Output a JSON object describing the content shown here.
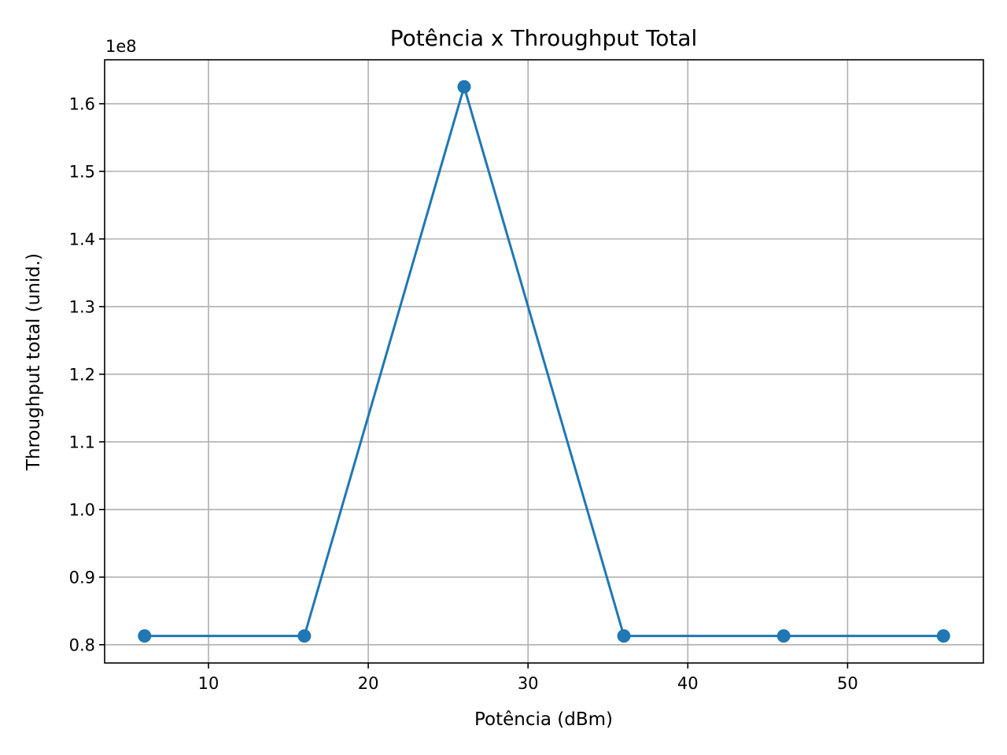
{
  "chart_data": {
    "type": "line",
    "title": "Potência x Throughput Total",
    "xlabel": "Potência (dBm)",
    "ylabel": "Throughput total (unid.)",
    "y_offset_label": "1e8",
    "x": [
      6,
      16,
      26,
      36,
      46,
      56
    ],
    "series": [
      {
        "values": [
          81300000,
          81300000,
          162500000,
          81300000,
          81300000,
          81300000
        ],
        "color": "#1f77b4",
        "marker": "circle"
      }
    ],
    "xlim": [
      3.5,
      58.5
    ],
    "ylim": [
      77300000,
      166500000
    ],
    "xticks": [
      10,
      20,
      30,
      40,
      50
    ],
    "xtick_labels": [
      "10",
      "20",
      "30",
      "40",
      "50"
    ],
    "yticks": [
      80000000,
      90000000,
      100000000,
      110000000,
      120000000,
      130000000,
      140000000,
      150000000,
      160000000
    ],
    "ytick_labels": [
      "0.8",
      "0.9",
      "1.0",
      "1.1",
      "1.2",
      "1.3",
      "1.4",
      "1.5",
      "1.6"
    ],
    "grid": true
  }
}
